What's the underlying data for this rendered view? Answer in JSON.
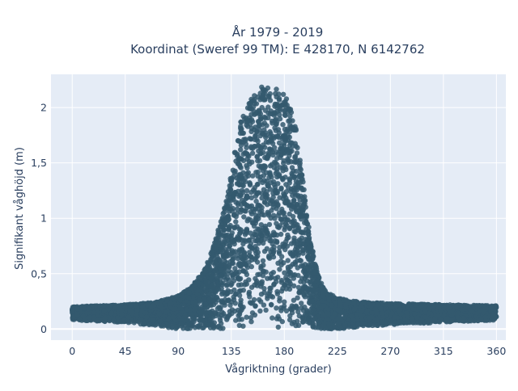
{
  "chart_data": {
    "type": "scatter",
    "title": "År 1979 - 2019",
    "subtitle": "Koordinat (Sweref 99 TM): E 428170, N 6142762",
    "xlabel": "Vågriktning (grader)",
    "ylabel": "Signifikant våghöjd (m)",
    "xlim": [
      -18,
      368
    ],
    "ylim": [
      -0.1,
      2.3
    ],
    "x_ticks": [
      0,
      45,
      90,
      135,
      180,
      225,
      270,
      315,
      360
    ],
    "x_tick_labels": [
      "0",
      "45",
      "90",
      "135",
      "180",
      "225",
      "270",
      "315",
      "360"
    ],
    "y_ticks": [
      0,
      0.5,
      1,
      1.5,
      2
    ],
    "y_tick_labels": [
      "0",
      "0,5",
      "1",
      "1,5",
      "2"
    ],
    "grid": true,
    "marker_color": "#34596f",
    "background_color": "#e5ecf6",
    "series": [
      {
        "envelope_upper": {
          "x": [
            0,
            20,
            45,
            70,
            90,
            100,
            110,
            120,
            128,
            135,
            140,
            145,
            150,
            155,
            160,
            165,
            170,
            175,
            180,
            185,
            190,
            195,
            200,
            205,
            210,
            215,
            225,
            240,
            270,
            315,
            360
          ],
          "y": [
            0.2,
            0.21,
            0.22,
            0.24,
            0.3,
            0.37,
            0.5,
            0.75,
            1.05,
            1.4,
            1.75,
            1.95,
            2.07,
            2.15,
            2.19,
            2.19,
            2.18,
            2.16,
            2.13,
            2.0,
            1.8,
            1.4,
            1.0,
            0.65,
            0.45,
            0.34,
            0.28,
            0.25,
            0.23,
            0.22,
            0.21
          ]
        },
        "envelope_lower": {
          "x": [
            0,
            45,
            90,
            135,
            180,
            225,
            270,
            315,
            360
          ],
          "y": [
            0.08,
            0.06,
            0.0,
            0.0,
            0.0,
            0.0,
            0.04,
            0.06,
            0.08
          ]
        }
      }
    ]
  }
}
